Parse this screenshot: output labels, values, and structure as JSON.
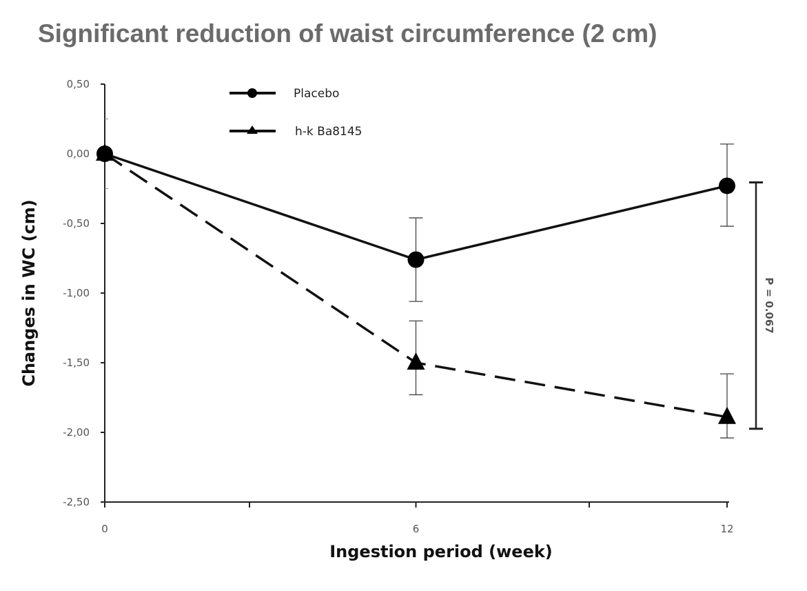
{
  "chart_data": {
    "type": "line",
    "title": "Significant reduction of waist circumference (2 cm)",
    "xlabel": "Ingestion period (week)",
    "ylabel": "Changes in WC (cm)",
    "x": [
      0,
      6,
      12
    ],
    "x_ticks": [
      "0",
      "6",
      "12"
    ],
    "y_ticks": [
      "0,50",
      "0,00",
      "-0,50",
      "-1,00",
      "-1,50",
      "-2,00",
      "-2,50"
    ],
    "ylim": [
      -2.5,
      0.5
    ],
    "xlim": [
      0,
      12
    ],
    "grid": false,
    "legend_placement": "top-center",
    "series": [
      {
        "name": "Placebo",
        "marker": "circle",
        "line": "solid",
        "values": [
          0,
          -0.76,
          -0.23
        ],
        "error_low": [
          0,
          -1.06,
          -0.52
        ],
        "error_high": [
          0,
          -0.46,
          0.07
        ]
      },
      {
        "name": "h-k Ba8145",
        "marker": "triangle",
        "line": "dashed",
        "values": [
          0,
          -1.5,
          -1.89
        ],
        "error_low": [
          0,
          -1.73,
          -2.04
        ],
        "error_high": [
          0,
          -1.2,
          -1.58
        ]
      }
    ],
    "annotation": "P = 0.067"
  }
}
